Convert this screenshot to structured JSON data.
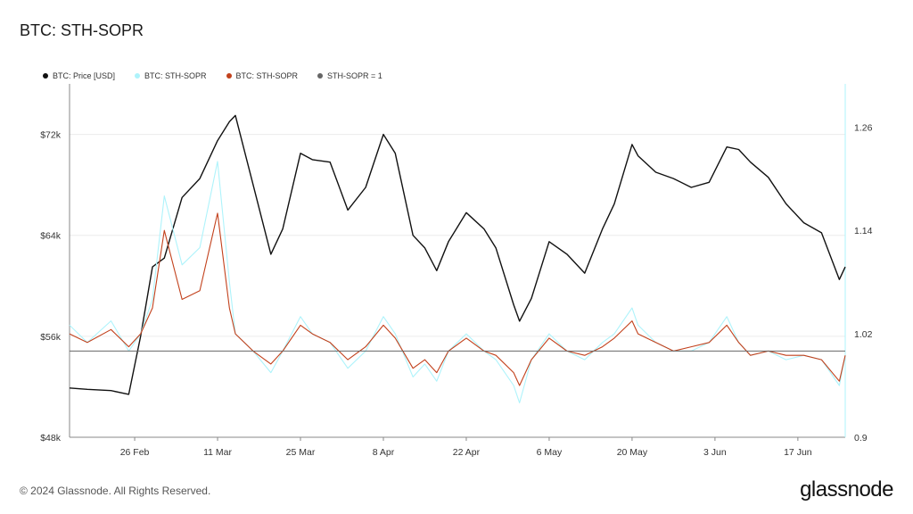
{
  "header": {
    "title": "BTC: STH-SOPR"
  },
  "legend": [
    {
      "label": "BTC: Price [USD]",
      "color": "#111111"
    },
    {
      "label": "BTC: STH-SOPR",
      "color": "#aef3fb"
    },
    {
      "label": "BTC: STH-SOPR",
      "color": "#c2411c"
    },
    {
      "label": "STH-SOPR = 1",
      "color": "#666666"
    }
  ],
  "footer": {
    "copyright": "© 2024 Glassnode. All Rights Reserved.",
    "brand": "glassnode"
  },
  "chart_data": {
    "type": "line",
    "title": "BTC: STH-SOPR",
    "x_ticks": [
      "26 Feb",
      "11 Mar",
      "25 Mar",
      "8 Apr",
      "22 Apr",
      "6 May",
      "20 May",
      "3 Jun",
      "17 Jun"
    ],
    "x_range": [
      "2024-02-15",
      "2024-06-25"
    ],
    "y_left": {
      "ticks": [
        "$48k",
        "$56k",
        "$64k",
        "$72k"
      ],
      "range": [
        48000,
        76000
      ]
    },
    "y_right": {
      "ticks": [
        "0.9",
        "1.02",
        "1.14",
        "1.26"
      ],
      "range": [
        0.9,
        1.31
      ]
    },
    "reference_line": {
      "name": "STH-SOPR = 1",
      "value": 1.0
    },
    "series": [
      {
        "name": "BTC: Price [USD]",
        "axis": "left",
        "color": "#111111",
        "x": [
          "2024-02-15",
          "2024-02-18",
          "2024-02-22",
          "2024-02-25",
          "2024-02-27",
          "2024-02-29",
          "2024-03-02",
          "2024-03-05",
          "2024-03-08",
          "2024-03-11",
          "2024-03-13",
          "2024-03-14",
          "2024-03-17",
          "2024-03-20",
          "2024-03-22",
          "2024-03-25",
          "2024-03-27",
          "2024-03-30",
          "2024-04-02",
          "2024-04-05",
          "2024-04-08",
          "2024-04-10",
          "2024-04-13",
          "2024-04-15",
          "2024-04-17",
          "2024-04-19",
          "2024-04-22",
          "2024-04-25",
          "2024-04-27",
          "2024-04-30",
          "2024-05-01",
          "2024-05-03",
          "2024-05-06",
          "2024-05-09",
          "2024-05-12",
          "2024-05-15",
          "2024-05-17",
          "2024-05-20",
          "2024-05-21",
          "2024-05-24",
          "2024-05-27",
          "2024-05-30",
          "2024-06-02",
          "2024-06-05",
          "2024-06-07",
          "2024-06-09",
          "2024-06-12",
          "2024-06-15",
          "2024-06-18",
          "2024-06-21",
          "2024-06-24",
          "2024-06-25"
        ],
        "values": [
          51900,
          51800,
          51700,
          51400,
          56000,
          61500,
          62200,
          67000,
          68500,
          71500,
          73000,
          73500,
          68000,
          62500,
          64500,
          70500,
          70000,
          69800,
          66000,
          67800,
          72000,
          70500,
          64000,
          63000,
          61200,
          63500,
          65800,
          64500,
          63000,
          58500,
          57200,
          59000,
          63500,
          62500,
          61000,
          64500,
          66500,
          71200,
          70300,
          69000,
          68500,
          67800,
          68200,
          71000,
          70800,
          69800,
          68600,
          66500,
          65000,
          64200,
          60500,
          61500
        ]
      },
      {
        "name": "BTC: STH-SOPR",
        "axis": "right",
        "color": "#aef3fb",
        "x": [
          "2024-02-15",
          "2024-02-18",
          "2024-02-22",
          "2024-02-25",
          "2024-02-27",
          "2024-02-29",
          "2024-03-02",
          "2024-03-05",
          "2024-03-08",
          "2024-03-11",
          "2024-03-13",
          "2024-03-14",
          "2024-03-17",
          "2024-03-20",
          "2024-03-22",
          "2024-03-25",
          "2024-03-27",
          "2024-03-30",
          "2024-04-02",
          "2024-04-05",
          "2024-04-08",
          "2024-04-10",
          "2024-04-13",
          "2024-04-15",
          "2024-04-17",
          "2024-04-19",
          "2024-04-22",
          "2024-04-25",
          "2024-04-27",
          "2024-04-30",
          "2024-05-01",
          "2024-05-03",
          "2024-05-06",
          "2024-05-09",
          "2024-05-12",
          "2024-05-15",
          "2024-05-17",
          "2024-05-20",
          "2024-05-21",
          "2024-05-24",
          "2024-05-27",
          "2024-05-30",
          "2024-06-02",
          "2024-06-05",
          "2024-06-07",
          "2024-06-09",
          "2024-06-12",
          "2024-06-15",
          "2024-06-18",
          "2024-06-21",
          "2024-06-24",
          "2024-06-25"
        ],
        "values": [
          1.03,
          1.01,
          1.035,
          1.0,
          1.02,
          1.06,
          1.18,
          1.1,
          1.12,
          1.22,
          1.08,
          1.02,
          1.0,
          0.975,
          1.0,
          1.04,
          1.02,
          1.01,
          0.98,
          1.0,
          1.04,
          1.02,
          0.97,
          0.985,
          0.965,
          1.0,
          1.02,
          1.0,
          0.99,
          0.96,
          0.94,
          0.99,
          1.02,
          1.0,
          0.99,
          1.01,
          1.02,
          1.05,
          1.03,
          1.01,
          1.0,
          1.0,
          1.01,
          1.04,
          1.01,
          0.995,
          1.0,
          0.99,
          0.995,
          0.99,
          0.96,
          0.995
        ]
      },
      {
        "name": "BTC: STH-SOPR",
        "axis": "right",
        "color": "#c2411c",
        "x": [
          "2024-02-15",
          "2024-02-18",
          "2024-02-22",
          "2024-02-25",
          "2024-02-27",
          "2024-02-29",
          "2024-03-02",
          "2024-03-05",
          "2024-03-08",
          "2024-03-11",
          "2024-03-13",
          "2024-03-14",
          "2024-03-17",
          "2024-03-20",
          "2024-03-22",
          "2024-03-25",
          "2024-03-27",
          "2024-03-30",
          "2024-04-02",
          "2024-04-05",
          "2024-04-08",
          "2024-04-10",
          "2024-04-13",
          "2024-04-15",
          "2024-04-17",
          "2024-04-19",
          "2024-04-22",
          "2024-04-25",
          "2024-04-27",
          "2024-04-30",
          "2024-05-01",
          "2024-05-03",
          "2024-05-06",
          "2024-05-09",
          "2024-05-12",
          "2024-05-15",
          "2024-05-17",
          "2024-05-20",
          "2024-05-21",
          "2024-05-24",
          "2024-05-27",
          "2024-05-30",
          "2024-06-02",
          "2024-06-05",
          "2024-06-07",
          "2024-06-09",
          "2024-06-12",
          "2024-06-15",
          "2024-06-18",
          "2024-06-21",
          "2024-06-24",
          "2024-06-25"
        ],
        "values": [
          1.02,
          1.01,
          1.025,
          1.005,
          1.02,
          1.05,
          1.14,
          1.06,
          1.07,
          1.16,
          1.05,
          1.02,
          1.0,
          0.985,
          1.0,
          1.03,
          1.02,
          1.01,
          0.99,
          1.005,
          1.03,
          1.015,
          0.98,
          0.99,
          0.975,
          1.0,
          1.015,
          1.0,
          0.995,
          0.975,
          0.96,
          0.99,
          1.015,
          1.0,
          0.995,
          1.005,
          1.015,
          1.035,
          1.02,
          1.01,
          1.0,
          1.005,
          1.01,
          1.03,
          1.01,
          0.995,
          1.0,
          0.995,
          0.995,
          0.99,
          0.965,
          0.995
        ]
      }
    ]
  }
}
